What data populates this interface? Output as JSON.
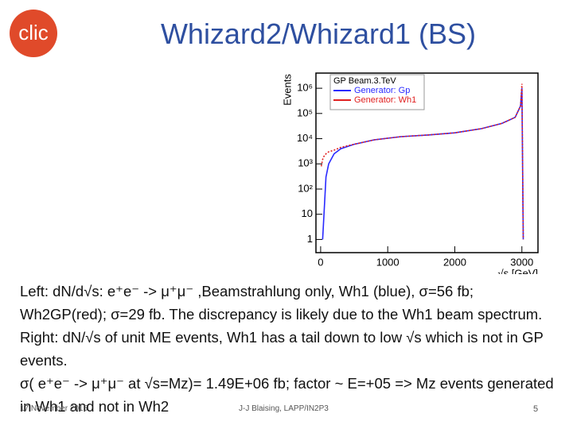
{
  "header": {
    "title": "Whizard2/Whizard1 (BS)",
    "logo": "clic"
  },
  "chart_data": {
    "type": "line",
    "legend_title": "GP Beam.3.TeV",
    "y_label": "Events",
    "x_label": "√s [GeV]",
    "x": [
      10,
      30,
      50,
      80,
      120,
      200,
      300,
      500,
      800,
      1200,
      1600,
      2000,
      2400,
      2700,
      2900,
      2980,
      3000,
      3020,
      3050
    ],
    "series": [
      {
        "name": "Generator:  Gp",
        "color": "#2a2aff",
        "values": [
          null,
          1,
          10,
          300,
          1000,
          2500,
          4000,
          6000,
          9000,
          12000,
          14000,
          17000,
          25000,
          40000,
          70000,
          200000,
          1000000,
          1,
          null
        ]
      },
      {
        "name": "Generator:  Wh1",
        "color": "#e02020",
        "values": [
          800,
          1500,
          2000,
          2500,
          3000,
          3500,
          4500,
          6000,
          9000,
          12000,
          14000,
          17000,
          25000,
          40000,
          70000,
          200000,
          1500000,
          1,
          null
        ]
      }
    ],
    "log_y": true,
    "xlim": [
      -70,
      3240
    ],
    "ylim": [
      0.3,
      4000000
    ],
    "xticks": [
      0,
      1000,
      2000,
      3000
    ],
    "yticks": [
      1,
      10,
      {
        "value": 100,
        "label": "10²"
      },
      {
        "value": 1000,
        "label": "10³"
      },
      {
        "value": 10000,
        "label": "10⁴"
      },
      {
        "value": 100000,
        "label": "10⁵"
      },
      {
        "value": 1000000,
        "label": "10⁶"
      }
    ]
  },
  "body": {
    "paragraphs": [
      "Left: dN/d√s: e⁺e⁻ -> μ⁺μ⁻ ,Beamstrahlung only,  Wh1 (blue), σ=56 fb; Wh2GP(red); σ=29 fb. The discrepancy is likely due to the Wh1 beam spectrum. Right:  dN/√s of unit ME events, Wh1 has a tail down to low √s which is not in GP events.",
      "σ( e⁺e⁻ -> μ⁺μ⁻ at √s=Mz)= 1.49E+06 fb; factor ~ E=+05 => Mz events generated in Wh1 and not in Wh2"
    ]
  },
  "footer": {
    "date": "17 November 2015",
    "author": "J-J Blaising, LAPP/IN2P3",
    "page": "5"
  }
}
